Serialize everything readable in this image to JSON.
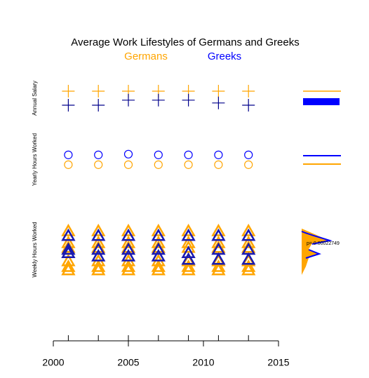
{
  "chart_data": {
    "type": "scatter",
    "title": "Average Work Lifestyles of Germans and Greeks",
    "legend": [
      {
        "name": "Germans",
        "color": "#FFA500"
      },
      {
        "name": "Greeks",
        "color": "#0000FF"
      }
    ],
    "x": [
      2001,
      2003,
      2005,
      2007,
      2009,
      2011,
      2013
    ],
    "xlim": [
      2000,
      2015
    ],
    "xticks": [
      2000,
      2005,
      2010,
      2015
    ],
    "annotation": "p= 0.00022749",
    "panels": [
      {
        "label": "Annual Salary",
        "ylim": [
          0,
          100
        ],
        "series": [
          {
            "name": "Germans",
            "color": "#FFA500",
            "marker": "plus",
            "values": [
              [
                75
              ],
              [
                75
              ],
              [
                75
              ],
              [
                75
              ],
              [
                75
              ],
              [
                75
              ],
              [
                75
              ]
            ]
          },
          {
            "name": "Greeks",
            "color": "#00008B",
            "marker": "plus",
            "values": [
              [
                25
              ],
              [
                25
              ],
              [
                43
              ],
              [
                43
              ],
              [
                43
              ],
              [
                33
              ],
              [
                25
              ]
            ]
          }
        ]
      },
      {
        "label": "Yearly Hours Worked",
        "ylim": [
          0,
          100
        ],
        "series": [
          {
            "name": "Germans",
            "color": "#FFA500",
            "marker": "circle",
            "values": [
              [
                29
              ],
              [
                29
              ],
              [
                29
              ],
              [
                29
              ],
              [
                29
              ],
              [
                29
              ],
              [
                29
              ]
            ]
          },
          {
            "name": "Greeks",
            "color": "#0000FF",
            "marker": "circle",
            "values": [
              [
                69
              ],
              [
                69
              ],
              [
                72
              ],
              [
                69
              ],
              [
                69
              ],
              [
                69
              ],
              [
                69
              ]
            ]
          }
        ]
      },
      {
        "label": "Weekly Hours Worked",
        "ylim": [
          0,
          100
        ],
        "series": [
          {
            "name": "Germans",
            "color": "#FFA500",
            "marker": "triangle",
            "values": [
              [
                89,
                64,
                54,
                26,
                14,
                7
              ],
              [
                89,
                64,
                54,
                26,
                14,
                7
              ],
              [
                89,
                64,
                54,
                26,
                14,
                7
              ],
              [
                89,
                64,
                54,
                26,
                14,
                7
              ],
              [
                89,
                64,
                54,
                26,
                14,
                7
              ],
              [
                89,
                64,
                54,
                26,
                14,
                7
              ],
              [
                89,
                64,
                54,
                26,
                14,
                7
              ]
            ]
          },
          {
            "name": "Greeks",
            "color": "#1A1AB0",
            "marker": "triangle",
            "values": [
              [
                79,
                50,
                43
              ],
              [
                79,
                50,
                36
              ],
              [
                79,
                50,
                36
              ],
              [
                79,
                50,
                36
              ],
              [
                79,
                43,
                29
              ],
              [
                79,
                50,
                29
              ],
              [
                79,
                50,
                29
              ]
            ]
          }
        ]
      }
    ]
  }
}
